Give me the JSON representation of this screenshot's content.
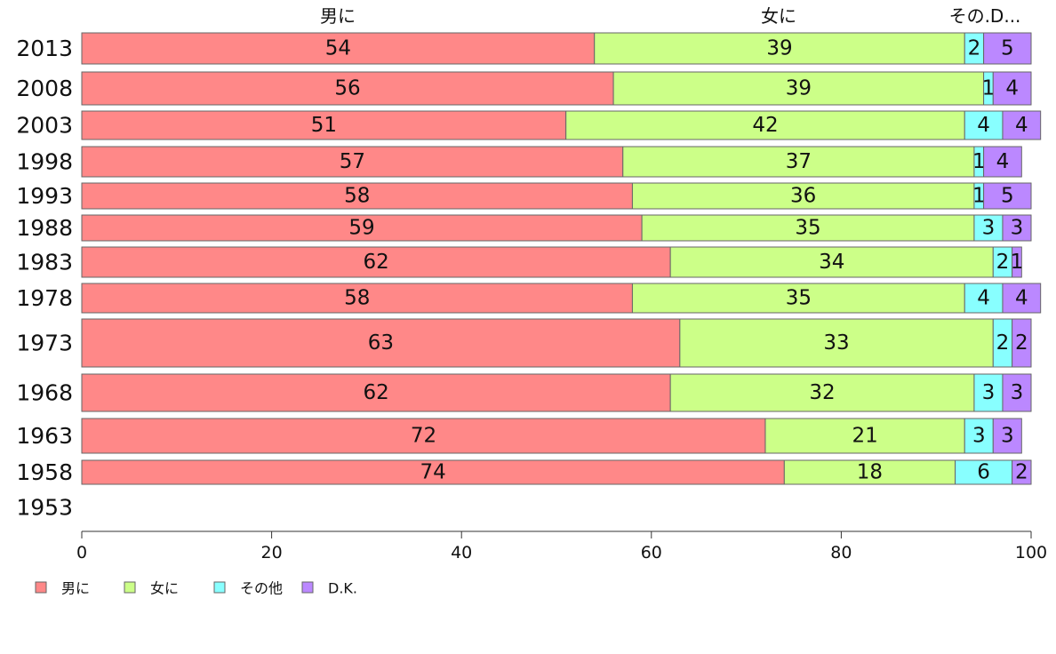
{
  "chart_data": {
    "type": "bar",
    "orientation": "horizontal",
    "stacked": true,
    "categories": [
      "2013",
      "2008",
      "2003",
      "1998",
      "1993",
      "1988",
      "1983",
      "1978",
      "1973",
      "1968",
      "1963",
      "1958",
      "1953"
    ],
    "series": [
      {
        "name": "男に",
        "color": "#ff8888",
        "values": [
          54,
          56,
          51,
          57,
          58,
          59,
          62,
          58,
          63,
          62,
          72,
          74,
          null
        ]
      },
      {
        "name": "女に",
        "color": "#ccff88",
        "values": [
          39,
          39,
          42,
          37,
          36,
          35,
          34,
          35,
          33,
          32,
          21,
          18,
          null
        ]
      },
      {
        "name": "その他",
        "color": "#88ffff",
        "values": [
          2,
          1,
          4,
          1,
          1,
          3,
          2,
          4,
          2,
          3,
          3,
          6,
          null
        ]
      },
      {
        "name": "D.K.",
        "color": "#bb88ff",
        "values": [
          5,
          4,
          4,
          4,
          5,
          3,
          1,
          4,
          2,
          3,
          3,
          2,
          null
        ]
      }
    ],
    "column_headers": [
      "男に",
      "女に",
      "その.D..."
    ],
    "xlim": [
      0,
      100
    ],
    "xticks": [
      "0",
      "20",
      "40",
      "60",
      "80",
      "100"
    ],
    "legend_position": "bottom-left",
    "grid": false
  }
}
